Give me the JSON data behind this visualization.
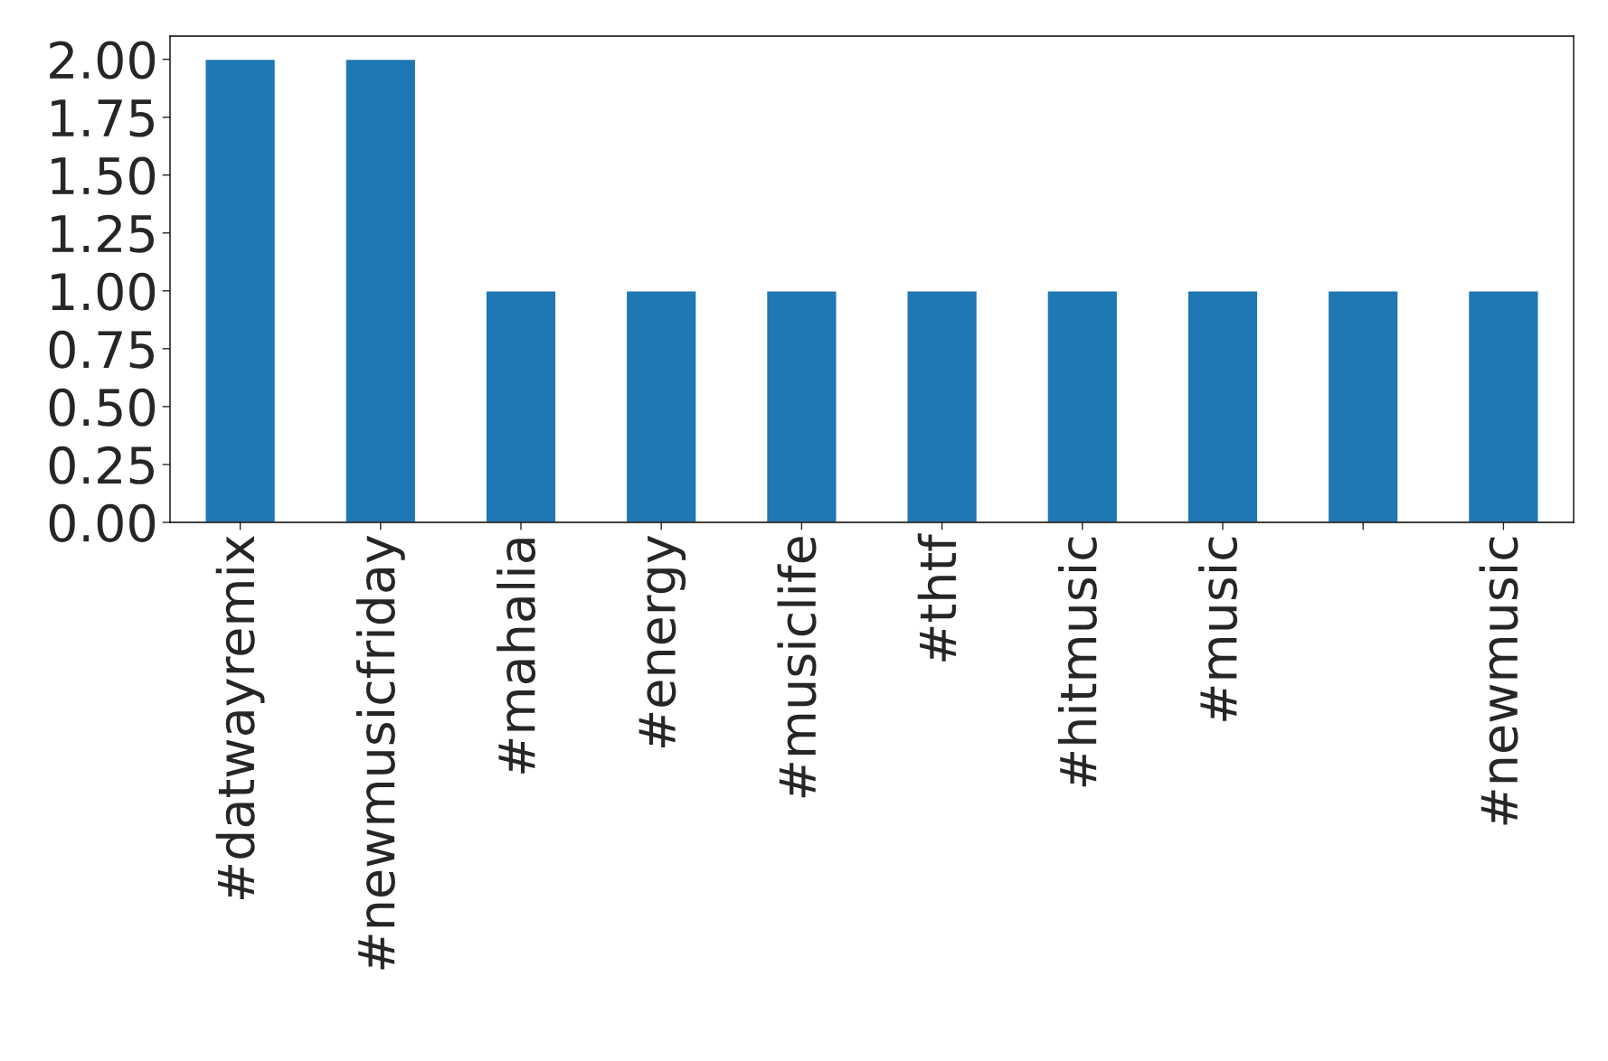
{
  "chart_data": {
    "type": "bar",
    "categories": [
      "#datwayremix",
      "#newmusicfriday",
      "#mahalia",
      "#energy",
      "#musiclife",
      "#thtf",
      "#hitmusic",
      "#music",
      null,
      "#newmusic"
    ],
    "values": [
      2,
      2,
      1,
      1,
      1,
      1,
      1,
      1,
      1,
      1
    ],
    "color": "#1f77b4",
    "ylim": [
      0,
      2.1
    ],
    "yticks": [
      {
        "value": 0,
        "label": "0.00"
      },
      {
        "value": 0.25,
        "label": "0.25"
      },
      {
        "value": 0.5,
        "label": "0.50"
      },
      {
        "value": 0.75,
        "label": "0.75"
      },
      {
        "value": 1,
        "label": "1.00"
      },
      {
        "value": 1.25,
        "label": "1.25"
      },
      {
        "value": 1.5,
        "label": "1.50"
      },
      {
        "value": 1.75,
        "label": "1.75"
      },
      {
        "value": 2,
        "label": "2.00"
      }
    ],
    "grid": false,
    "legend": false
  }
}
